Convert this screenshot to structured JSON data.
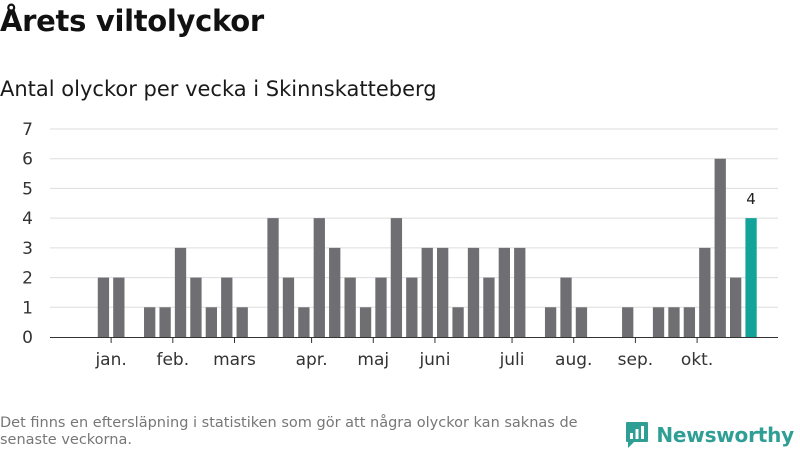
{
  "header": {
    "title": "Årets viltolyckor",
    "subtitle": "Antal olyckor per vecka i Skinnskatteberg"
  },
  "footer": {
    "note": "Det finns en eftersläpning i statistiken som gör att några olyckor kan saknas de senaste veckorna.",
    "brand": "Newsworthy"
  },
  "colors": {
    "bar": "#6f6e73",
    "highlight": "#13a39a",
    "grid": "#dddddd",
    "brand": "#2f9e95"
  },
  "chart_data": {
    "type": "bar",
    "title": "Antal olyckor per vecka i Skinnskatteberg",
    "xlabel": "",
    "ylabel": "",
    "ylim": [
      0,
      7
    ],
    "yticks": [
      0,
      1,
      2,
      3,
      4,
      5,
      6,
      7
    ],
    "grid": true,
    "categories": [
      "1",
      "2",
      "3",
      "4",
      "5",
      "6",
      "7",
      "8",
      "9",
      "10",
      "11",
      "12",
      "13",
      "14",
      "15",
      "16",
      "17",
      "18",
      "19",
      "20",
      "21",
      "22",
      "23",
      "24",
      "25",
      "26",
      "27",
      "28",
      "29",
      "30",
      "31",
      "32",
      "33",
      "34",
      "35",
      "36",
      "37",
      "38",
      "39",
      "40",
      "41",
      "42",
      "43",
      "44",
      "45"
    ],
    "values": [
      0,
      2,
      2,
      0,
      1,
      1,
      3,
      2,
      1,
      2,
      1,
      0,
      4,
      2,
      1,
      4,
      3,
      2,
      1,
      2,
      4,
      2,
      3,
      3,
      1,
      3,
      2,
      3,
      3,
      0,
      1,
      2,
      1,
      0,
      0,
      1,
      0,
      1,
      1,
      1,
      3,
      6,
      2,
      4,
      0
    ],
    "highlight_index": 43,
    "highlight_label": "4",
    "month_ticks": [
      {
        "label": "jan.",
        "position": 1.5
      },
      {
        "label": "feb.",
        "position": 5.5
      },
      {
        "label": "mars",
        "position": 9.5
      },
      {
        "label": "apr.",
        "position": 14.5
      },
      {
        "label": "maj",
        "position": 18.5
      },
      {
        "label": "juni",
        "position": 22.5
      },
      {
        "label": "juli",
        "position": 27.5
      },
      {
        "label": "aug.",
        "position": 31.5
      },
      {
        "label": "sep.",
        "position": 35.5
      },
      {
        "label": "okt.",
        "position": 39.5
      }
    ]
  }
}
